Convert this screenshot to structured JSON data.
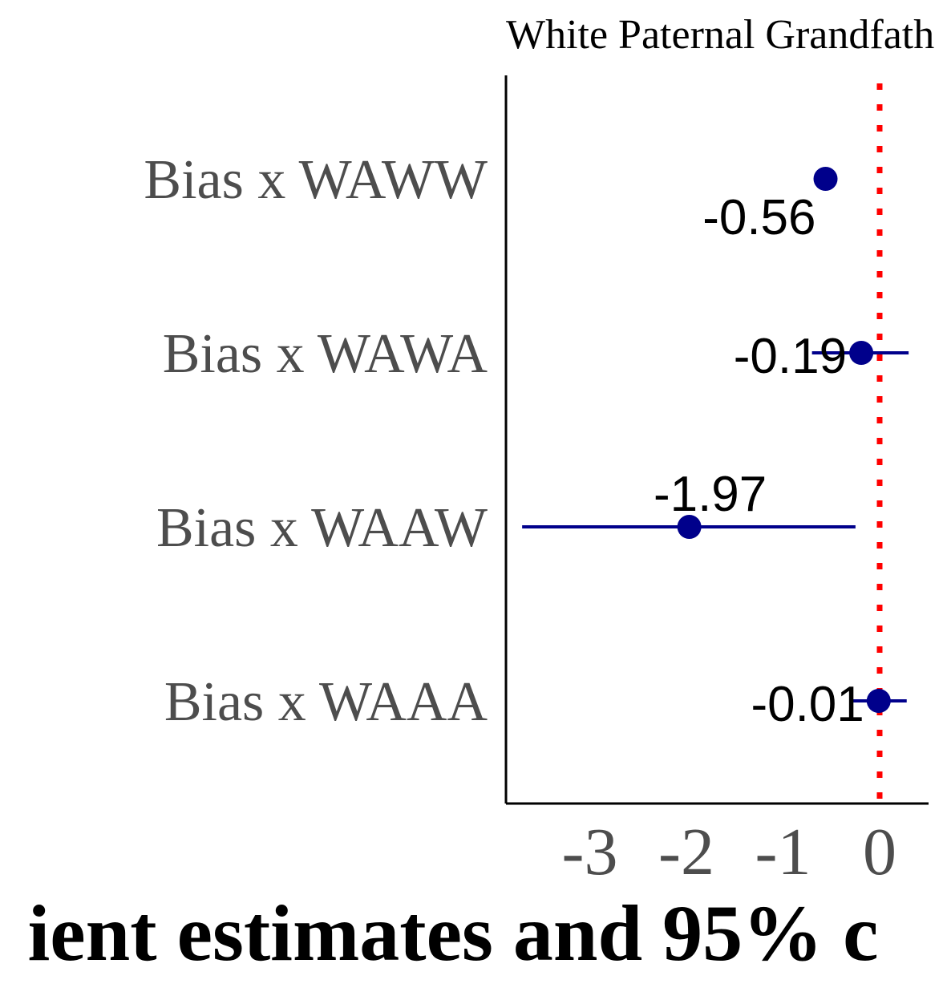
{
  "chart_data": {
    "type": "scatter",
    "subtype": "coefficient-plot",
    "facet_title": "White Paternal Grandfath",
    "xlabel": "ient estimates and 95% c",
    "categories": [
      "Bias x WAWW",
      "Bias x WAWA",
      "Bias x WAAW",
      "Bias x WAAA"
    ],
    "estimates": [
      -0.56,
      -0.19,
      -1.97,
      -0.01
    ],
    "value_labels": [
      "-0.56",
      "-0.19",
      "-1.97",
      "-0.01"
    ],
    "ci_lower": [
      null,
      -0.7,
      -3.7,
      -0.3
    ],
    "ci_upper": [
      null,
      0.3,
      -0.25,
      0.28
    ],
    "x_ticks": [
      -3,
      -2,
      -1,
      0
    ],
    "x_tick_labels": [
      "-3",
      "-2",
      "-1",
      "0"
    ],
    "xlim": [
      -3.9,
      0.5
    ],
    "reference_line": {
      "x": 0,
      "style": "dotted",
      "color": "#ff0000"
    },
    "point_color": "#00008b",
    "grid": false,
    "legend": "none"
  }
}
